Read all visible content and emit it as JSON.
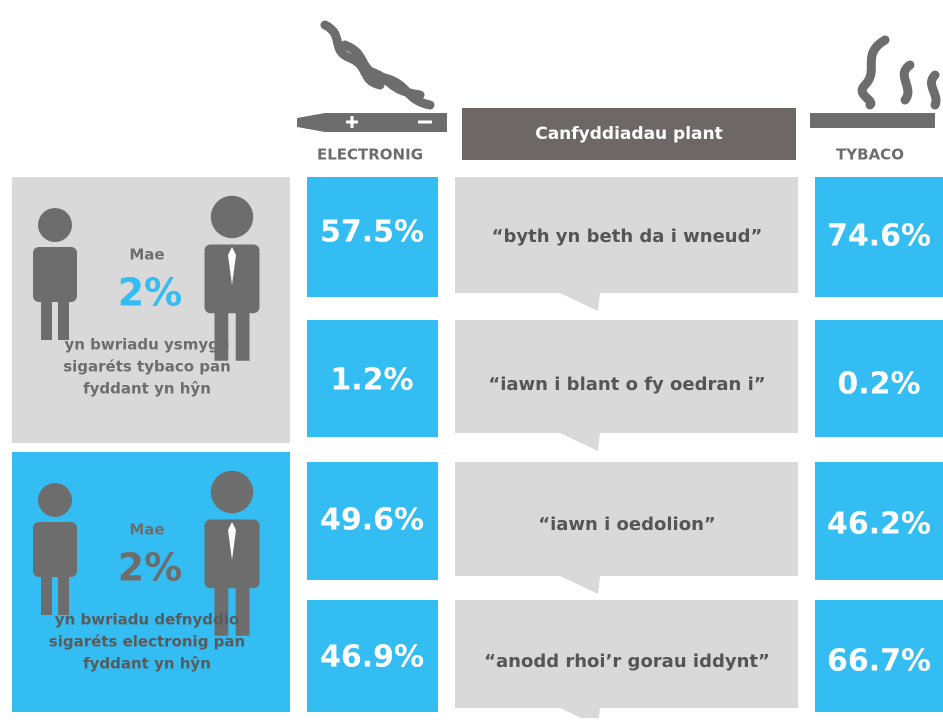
{
  "header": {
    "electronic_label": "ELECTRONIG",
    "center_title": "Canfyddiadau plant",
    "tobacco_label": "TYBACO"
  },
  "panels": [
    {
      "mae": "Mae",
      "percent": "2%",
      "lines": [
        "yn bwriadu ysmygu",
        "sigaréts tybaco pan",
        "fyddant yn hŷn"
      ]
    },
    {
      "mae": "Mae",
      "percent": "2%",
      "lines": [
        "yn bwriadu defnyddio",
        "sigaréts electronig pan",
        "fyddant yn hŷn"
      ]
    }
  ],
  "rows": [
    {
      "electronic": "57.5%",
      "quote": "“byth yn beth da i wneud”",
      "tobacco": "74.6%"
    },
    {
      "electronic": "1.2%",
      "quote": "“iawn i blant o fy oedran i”",
      "tobacco": "0.2%"
    },
    {
      "electronic": "49.6%",
      "quote": "“iawn i oedolion”",
      "tobacco": "46.2%"
    },
    {
      "electronic": "46.9%",
      "quote": "“anodd rhoi’r gorau iddynt”",
      "tobacco": "66.7%"
    }
  ]
}
